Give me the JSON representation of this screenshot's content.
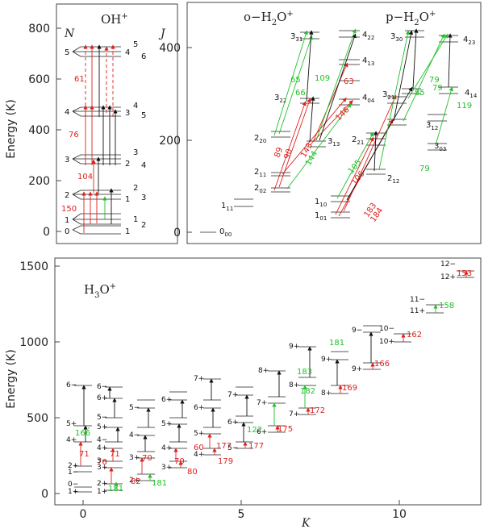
{
  "colors": {
    "red": "#e0201c",
    "green": "#22c02a",
    "black": "#111111"
  },
  "oh": {
    "title": "OH+",
    "title_main": "OH",
    "title_sup": "+",
    "ylabel": "Energy (K)",
    "yticks": [
      "0",
      "200",
      "400",
      "600",
      "800"
    ],
    "N_header": "N",
    "J_header": "J",
    "N": [
      "0",
      "1",
      "2",
      "3",
      "4",
      "5"
    ],
    "J": [
      [
        "1"
      ],
      [
        "1",
        "2"
      ],
      [
        "1",
        "2",
        "3"
      ],
      [
        "2",
        "3",
        "4"
      ],
      [
        "3",
        "4",
        "5"
      ],
      [
        "4",
        "5",
        "6"
      ]
    ],
    "wavelengths": [
      "150",
      "104",
      "76",
      "61"
    ]
  },
  "h2o": {
    "ortho_title": "o−H2O+",
    "ortho_main": "o−H",
    "ortho_sub": "2",
    "ortho_rest": "O",
    "ortho_sup": "+",
    "para_title": "p−H2O+",
    "para_main": "p−H",
    "para_sub": "2",
    "para_rest": "O",
    "para_sup": "+",
    "yticks": [
      "0",
      "200",
      "400"
    ],
    "levels": [
      {
        "base": "0",
        "sub": "00"
      },
      {
        "base": "1",
        "sub": "11"
      },
      {
        "base": "2",
        "sub": "02"
      },
      {
        "base": "2",
        "sub": "11"
      },
      {
        "base": "2",
        "sub": "20"
      },
      {
        "base": "3",
        "sub": "22"
      },
      {
        "base": "3",
        "sub": "31"
      },
      {
        "base": "3",
        "sub": "13"
      },
      {
        "base": "4",
        "sub": "04"
      },
      {
        "base": "4",
        "sub": "13"
      },
      {
        "base": "4",
        "sub": "22"
      },
      {
        "base": "1",
        "sub": "01"
      },
      {
        "base": "1",
        "sub": "10"
      },
      {
        "base": "2",
        "sub": "12"
      },
      {
        "base": "2",
        "sub": "21"
      },
      {
        "base": "3",
        "sub": "03"
      },
      {
        "base": "3",
        "sub": "12"
      },
      {
        "base": "3",
        "sub": "21"
      },
      {
        "base": "3",
        "sub": "30"
      },
      {
        "base": "4",
        "sub": "14"
      },
      {
        "base": "4",
        "sub": "23"
      }
    ],
    "wavelengths": [
      "89",
      "90",
      "143",
      "144",
      "146",
      "63",
      "65",
      "66",
      "109",
      "106",
      "105",
      "183",
      "184",
      "79",
      "79",
      "79",
      "85",
      "119"
    ]
  },
  "h3o": {
    "title": "H3O+",
    "title_main": "H",
    "title_sub": "3",
    "title_rest": "O",
    "title_sup": "+",
    "ylabel": "Energy (K)",
    "xlabel": "K",
    "yticks": [
      "0",
      "500",
      "1000",
      "1500"
    ],
    "xticks": [
      "0",
      "5",
      "10"
    ],
    "levels": [
      "1+",
      "0−",
      "1−",
      "2+",
      "2−",
      "3+",
      "3−",
      "4+",
      "4−",
      "5+",
      "5−",
      "6+",
      "6−",
      "7+",
      "7−",
      "8+",
      "8−",
      "9+",
      "9−",
      "10+",
      "10−",
      "11+",
      "11−",
      "12+",
      "12−"
    ],
    "wavelengths": [
      "71",
      "166",
      "181",
      "82",
      "71",
      "76",
      "70",
      "70",
      "181",
      "80",
      "60",
      "177",
      "179",
      "177",
      "122",
      "175",
      "172",
      "182",
      "183",
      "169",
      "166",
      "181",
      "162",
      "158",
      "153"
    ]
  }
}
